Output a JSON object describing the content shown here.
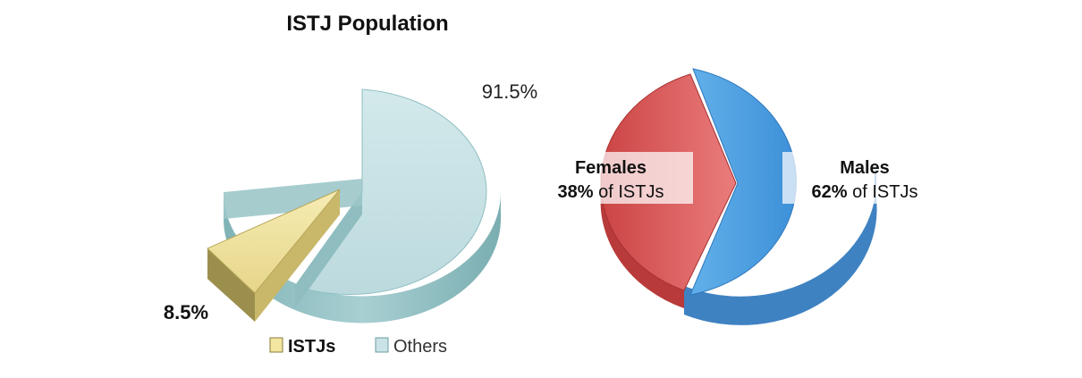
{
  "chart_data": [
    {
      "type": "pie",
      "title": "ISTJ Population",
      "slices": [
        {
          "label": "ISTJs",
          "value": 8.5,
          "value_label": "8.5%",
          "color": "#f2e6a0",
          "exploded": true
        },
        {
          "label": "Others",
          "value": 91.5,
          "value_label": "91.5%",
          "color": "#c9e3e6",
          "exploded": false
        }
      ],
      "legend": {
        "placement": "bottom",
        "entries": [
          "ISTJs",
          "Others"
        ]
      },
      "style": "3d"
    },
    {
      "type": "pie",
      "title": "",
      "slices": [
        {
          "label": "Females",
          "value": 38,
          "value_text": "38%",
          "suffix": " of ISTJs",
          "color": "#e06666"
        },
        {
          "label": "Males",
          "value": 62,
          "value_text": "62%",
          "suffix": " of ISTJs",
          "color": "#5aa6e6"
        }
      ],
      "style": "3d"
    }
  ]
}
